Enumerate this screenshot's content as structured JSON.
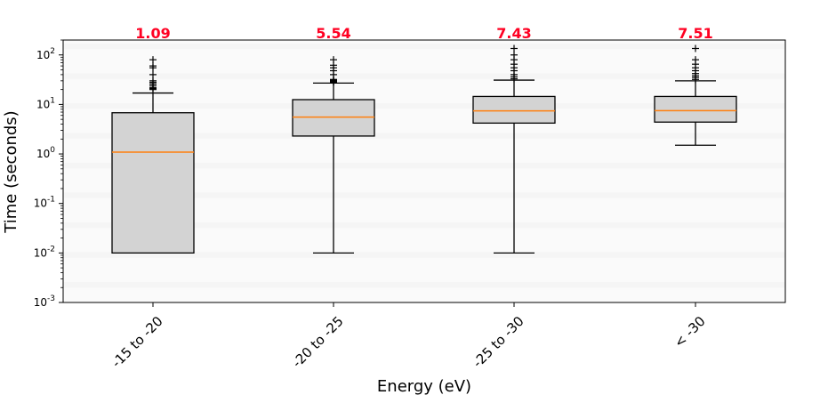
{
  "colors": {
    "box_fill": "#d3d3d3",
    "box_edge": "#000000",
    "median_line": "#ff7f0e",
    "median_label": "#ff0022",
    "grid_band": "#f5f5f5",
    "axes_background": "#fafafa"
  },
  "chart_data": {
    "type": "boxplot",
    "xlabel": "Energy (eV)",
    "ylabel": "Time (seconds)",
    "yscale": "log",
    "ylim": [
      0.001,
      200
    ],
    "categories": [
      "-15 to -20",
      "-20 to -25",
      "-25 to -30",
      "< -30"
    ],
    "median_labels": [
      "1.09",
      "5.54",
      "7.43",
      "7.51"
    ],
    "boxes": [
      {
        "whisker_low": 0.01,
        "q1": 0.01,
        "median": 1.09,
        "q3": 6.8,
        "whisker_high": 17,
        "outliers": [
          20,
          21,
          22,
          24,
          26,
          28,
          30,
          40,
          55,
          60,
          80
        ]
      },
      {
        "whisker_low": 0.01,
        "q1": 2.3,
        "median": 5.54,
        "q3": 12.5,
        "whisker_high": 27,
        "outliers": [
          28,
          29,
          30,
          31,
          32,
          40,
          48,
          55,
          62,
          80
        ]
      },
      {
        "whisker_low": 0.01,
        "q1": 4.2,
        "median": 7.43,
        "q3": 14.5,
        "whisker_high": 31,
        "outliers": [
          33,
          36,
          40,
          48,
          55,
          65,
          80,
          100,
          135
        ]
      },
      {
        "whisker_low": 1.5,
        "q1": 4.4,
        "median": 7.51,
        "q3": 14.5,
        "whisker_high": 30,
        "outliers": [
          32,
          35,
          38,
          42,
          48,
          55,
          65,
          80,
          135
        ]
      }
    ],
    "y_ticks": [
      {
        "base": "10",
        "exp": "-3",
        "value": 0.001
      },
      {
        "base": "10",
        "exp": "-2",
        "value": 0.01
      },
      {
        "base": "10",
        "exp": "-1",
        "value": 0.1
      },
      {
        "base": "10",
        "exp": "0",
        "value": 1
      },
      {
        "base": "10",
        "exp": "1",
        "value": 10
      },
      {
        "base": "10",
        "exp": "2",
        "value": 100
      }
    ],
    "grid": "horizontal bands",
    "legend": "none"
  }
}
